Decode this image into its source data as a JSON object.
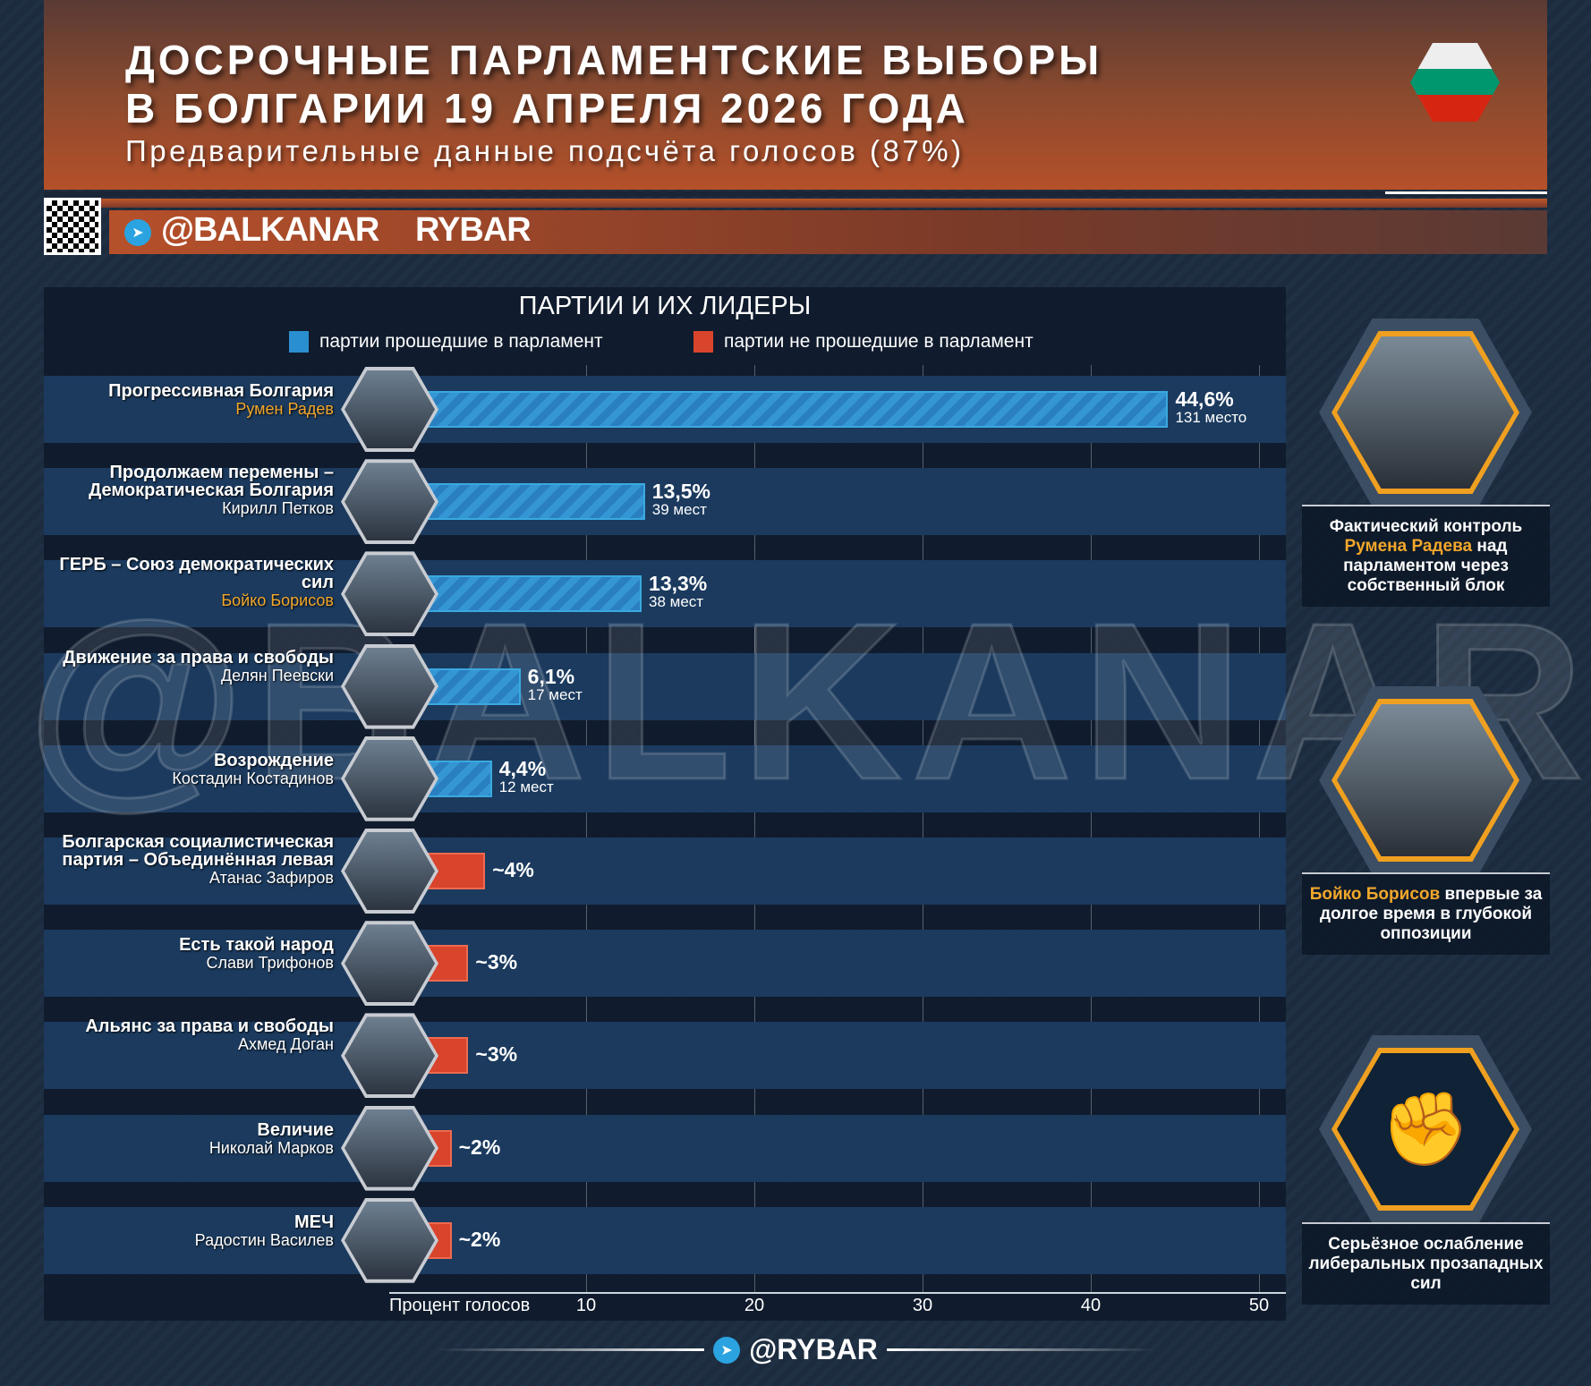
{
  "header": {
    "title_line1": "ДОСРОЧНЫЕ ПАРЛАМЕНТСКИЕ ВЫБОРЫ",
    "title_line2": "В БОЛГАРИИ 19 АПРЕЛЯ 2026 ГОДА",
    "subtitle": "Предварительные данные подсчёта голосов (87%)",
    "flag_colors": [
      "#ffffff",
      "#00966e",
      "#d62612"
    ]
  },
  "brand": {
    "channel": "@BALKANAR",
    "logo": "RYBAR",
    "icon": "telegram-icon"
  },
  "watermark": "@BALKANAR",
  "footer": {
    "handle": "@RYBAR"
  },
  "colors": {
    "passed": "#2a8fd0",
    "not_passed": "#d9442c",
    "highlight": "#f3a72b"
  },
  "chart_data": {
    "type": "bar",
    "orientation": "horizontal",
    "title": "ПАРТИИ И ИХ ЛИДЕРЫ",
    "xlabel": "Процент голосов",
    "xlim": [
      0,
      50
    ],
    "xticks": [
      10,
      20,
      30,
      40,
      50
    ],
    "grid": true,
    "legend": [
      {
        "label": "партии прошедшие в парламент",
        "color": "#2a8fd0"
      },
      {
        "label": "партии не прошедшие в парламент",
        "color": "#d9442c"
      }
    ],
    "legend_position": "top",
    "rows": [
      {
        "party": "Прогрессивная Болгария",
        "leader": "Румен Радев",
        "leader_highlight": true,
        "value": 44.6,
        "label": "44,6%",
        "seats": "131 место",
        "passed": true
      },
      {
        "party": "Продолжаем перемены – Демократическая Болгария",
        "leader": "Кирилл Петков",
        "leader_highlight": false,
        "value": 13.5,
        "label": "13,5%",
        "seats": "39 мест",
        "passed": true
      },
      {
        "party": "ГЕРБ – Союз демократических сил",
        "leader": "Бойко Борисов",
        "leader_highlight": true,
        "value": 13.3,
        "label": "13,3%",
        "seats": "38 мест",
        "passed": true
      },
      {
        "party": "Движение за права и свободы",
        "leader": "Делян Пеевски",
        "leader_highlight": false,
        "value": 6.1,
        "label": "6,1%",
        "seats": "17 мест",
        "passed": true
      },
      {
        "party": "Возрождение",
        "leader": "Костадин Костадинов",
        "leader_highlight": false,
        "value": 4.4,
        "label": "4,4%",
        "seats": "12 мест",
        "passed": true
      },
      {
        "party": "Болгарская социалистическая партия – Объединённая левая",
        "leader": "Атанас Зафиров",
        "leader_highlight": false,
        "value": 4,
        "label": "~4%",
        "seats": "",
        "passed": false
      },
      {
        "party": "Есть такой народ",
        "leader": "Слави Трифонов",
        "leader_highlight": false,
        "value": 3,
        "label": "~3%",
        "seats": "",
        "passed": false
      },
      {
        "party": "Альянс за права и свободы",
        "leader": "Ахмед Доган",
        "leader_highlight": false,
        "value": 3,
        "label": "~3%",
        "seats": "",
        "passed": false
      },
      {
        "party": "Величие",
        "leader": "Николай Марков",
        "leader_highlight": false,
        "value": 2,
        "label": "~2%",
        "seats": "",
        "passed": false
      },
      {
        "party": "МЕЧ",
        "leader": "Радостин Василев",
        "leader_highlight": false,
        "value": 2,
        "label": "~2%",
        "seats": "",
        "passed": false
      }
    ]
  },
  "side": [
    {
      "pre": "Фактический контроль",
      "hl": "Румена Радева",
      "post": "над парламентом через собственный блок",
      "icon": "portrait-radev"
    },
    {
      "pre": "",
      "hl": "Бойко Борисов",
      "post": "впервые за долгое время в глубокой оппозиции",
      "icon": "portrait-borisov"
    },
    {
      "pre": "Серьёзное ослабление либеральных прозападных сил",
      "hl": "",
      "post": "",
      "icon": "raised-fist-split-icon"
    }
  ]
}
